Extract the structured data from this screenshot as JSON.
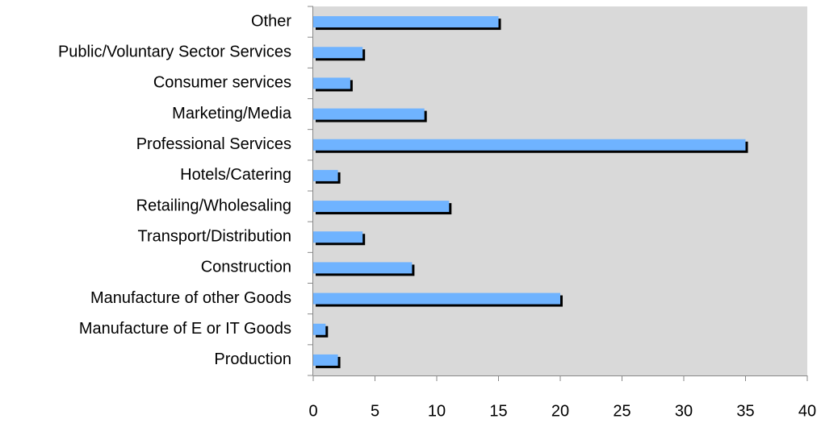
{
  "chart_data": {
    "type": "bar",
    "orientation": "horizontal",
    "categories": [
      "Production",
      "Manufacture of E or IT Goods",
      "Manufacture of other Goods",
      "Construction",
      "Transport/Distribution",
      "Retailing/Wholesaling",
      "Hotels/Catering",
      "Professional Services",
      "Marketing/Media",
      "Consumer services",
      "Public/Voluntary Sector Services",
      "Other"
    ],
    "values": [
      2,
      1,
      20,
      8,
      4,
      11,
      2,
      35,
      9,
      3,
      4,
      15
    ],
    "color": "#6fb3ff",
    "shadow_color": "#000000",
    "plot_background": "#d9d9d9",
    "xlim": [
      0,
      40
    ],
    "xticks": [
      0,
      5,
      10,
      15,
      20,
      25,
      30,
      35,
      40
    ],
    "grid": false
  }
}
